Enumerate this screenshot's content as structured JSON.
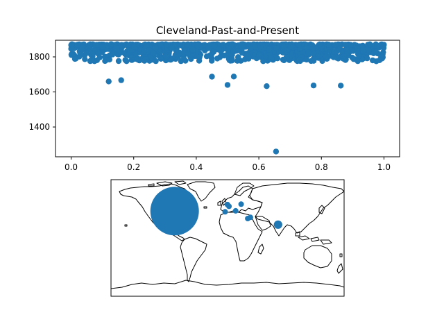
{
  "chart_data": [
    {
      "type": "scatter",
      "title": "Cleveland-Past-and-Present",
      "xlabel": "",
      "ylabel": "",
      "xlim": [
        -0.05,
        1.05
      ],
      "ylim": [
        1230,
        1895
      ],
      "xticks": [
        0.0,
        0.2,
        0.4,
        0.6,
        0.8,
        1.0
      ],
      "xtick_labels": [
        "0.0",
        "0.2",
        "0.4",
        "0.6",
        "0.8",
        "1.0"
      ],
      "yticks": [
        1400,
        1600,
        1800
      ],
      "ytick_labels": [
        "1400",
        "1600",
        "1800"
      ],
      "grid": false,
      "color": "#1f77b4",
      "dense_band": {
        "x_range": [
          0.0,
          1.0
        ],
        "y_range": [
          1775,
          1872
        ],
        "approx_points": 900
      },
      "outliers": [
        {
          "x": 0.12,
          "y": 1660
        },
        {
          "x": 0.16,
          "y": 1667
        },
        {
          "x": 0.45,
          "y": 1687
        },
        {
          "x": 0.5,
          "y": 1640
        },
        {
          "x": 0.52,
          "y": 1688
        },
        {
          "x": 0.625,
          "y": 1633
        },
        {
          "x": 0.775,
          "y": 1637
        },
        {
          "x": 0.862,
          "y": 1636
        },
        {
          "x": 0.655,
          "y": 1260
        }
      ]
    },
    {
      "type": "bubble-map",
      "projection": "plate-carree",
      "color": "#1f77b4",
      "points": [
        {
          "lon": -81.7,
          "lat": 41.5,
          "size": 1000
        },
        {
          "lon": -0.1,
          "lat": 51.5,
          "size": 12
        },
        {
          "lon": 2.3,
          "lat": 48.9,
          "size": 8
        },
        {
          "lon": 12.5,
          "lat": 41.9,
          "size": 8
        },
        {
          "lon": -3.7,
          "lat": 40.4,
          "size": 5
        },
        {
          "lon": 21.0,
          "lat": 52.2,
          "size": 6
        },
        {
          "lon": 35.2,
          "lat": 31.8,
          "size": 10
        },
        {
          "lon": 31.2,
          "lat": 30.0,
          "size": 7
        },
        {
          "lon": 78.0,
          "lat": 20.6,
          "size": 30
        }
      ]
    }
  ]
}
